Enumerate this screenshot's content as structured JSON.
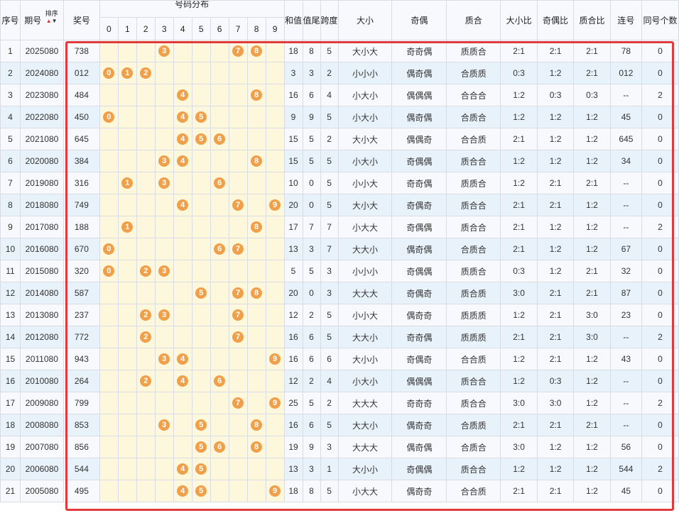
{
  "header": {
    "col_index": "序号",
    "col_period": "期号",
    "sort_label": "排序",
    "col_prize": "奖号",
    "col_distribution": "号码分布",
    "digits": [
      "0",
      "1",
      "2",
      "3",
      "4",
      "5",
      "6",
      "7",
      "8",
      "9"
    ],
    "col_sum": "和值",
    "col_tail": "值尾",
    "col_span": "跨度",
    "col_size": "大小",
    "col_parity": "奇偶",
    "col_prime": "质合",
    "col_size_ratio": "大小比",
    "col_parity_ratio": "奇偶比",
    "col_prime_ratio": "质合比",
    "col_consecutive": "连号",
    "col_same": "同号个数"
  },
  "rows": [
    {
      "idx": "1",
      "period": "2025080",
      "prize": "738",
      "sum": "18",
      "tail": "8",
      "span": "5",
      "size": "大小大",
      "parity": "奇奇偶",
      "prime": "质质合",
      "sr": "2:1",
      "pr": "2:1",
      "qr": "2:1",
      "cons": "78",
      "same": "0"
    },
    {
      "idx": "2",
      "period": "2024080",
      "prize": "012",
      "sum": "3",
      "tail": "3",
      "span": "2",
      "size": "小小小",
      "parity": "偶奇偶",
      "prime": "合质质",
      "sr": "0:3",
      "pr": "1:2",
      "qr": "2:1",
      "cons": "012",
      "same": "0"
    },
    {
      "idx": "3",
      "period": "2023080",
      "prize": "484",
      "sum": "16",
      "tail": "6",
      "span": "4",
      "size": "小大小",
      "parity": "偶偶偶",
      "prime": "合合合",
      "sr": "1:2",
      "pr": "0:3",
      "qr": "0:3",
      "cons": "--",
      "same": "2"
    },
    {
      "idx": "4",
      "period": "2022080",
      "prize": "450",
      "sum": "9",
      "tail": "9",
      "span": "5",
      "size": "小大小",
      "parity": "偶奇偶",
      "prime": "合质合",
      "sr": "1:2",
      "pr": "1:2",
      "qr": "1:2",
      "cons": "45",
      "same": "0"
    },
    {
      "idx": "5",
      "period": "2021080",
      "prize": "645",
      "sum": "15",
      "tail": "5",
      "span": "2",
      "size": "大小大",
      "parity": "偶偶奇",
      "prime": "合合质",
      "sr": "2:1",
      "pr": "1:2",
      "qr": "1:2",
      "cons": "645",
      "same": "0"
    },
    {
      "idx": "6",
      "period": "2020080",
      "prize": "384",
      "sum": "15",
      "tail": "5",
      "span": "5",
      "size": "小大小",
      "parity": "奇偶偶",
      "prime": "质合合",
      "sr": "1:2",
      "pr": "1:2",
      "qr": "1:2",
      "cons": "34",
      "same": "0"
    },
    {
      "idx": "7",
      "period": "2019080",
      "prize": "316",
      "sum": "10",
      "tail": "0",
      "span": "5",
      "size": "小小大",
      "parity": "奇奇偶",
      "prime": "质质合",
      "sr": "1:2",
      "pr": "2:1",
      "qr": "2:1",
      "cons": "--",
      "same": "0"
    },
    {
      "idx": "8",
      "period": "2018080",
      "prize": "749",
      "sum": "20",
      "tail": "0",
      "span": "5",
      "size": "大小大",
      "parity": "奇偶奇",
      "prime": "质合合",
      "sr": "2:1",
      "pr": "2:1",
      "qr": "1:2",
      "cons": "--",
      "same": "0"
    },
    {
      "idx": "9",
      "period": "2017080",
      "prize": "188",
      "sum": "17",
      "tail": "7",
      "span": "7",
      "size": "小大大",
      "parity": "奇偶偶",
      "prime": "质合合",
      "sr": "2:1",
      "pr": "1:2",
      "qr": "1:2",
      "cons": "--",
      "same": "2"
    },
    {
      "idx": "10",
      "period": "2016080",
      "prize": "670",
      "sum": "13",
      "tail": "3",
      "span": "7",
      "size": "大大小",
      "parity": "偶奇偶",
      "prime": "合质合",
      "sr": "2:1",
      "pr": "1:2",
      "qr": "1:2",
      "cons": "67",
      "same": "0"
    },
    {
      "idx": "11",
      "period": "2015080",
      "prize": "320",
      "sum": "5",
      "tail": "5",
      "span": "3",
      "size": "小小小",
      "parity": "奇偶偶",
      "prime": "质质合",
      "sr": "0:3",
      "pr": "1:2",
      "qr": "2:1",
      "cons": "32",
      "same": "0"
    },
    {
      "idx": "12",
      "period": "2014080",
      "prize": "587",
      "sum": "20",
      "tail": "0",
      "span": "3",
      "size": "大大大",
      "parity": "奇偶奇",
      "prime": "质合质",
      "sr": "3:0",
      "pr": "2:1",
      "qr": "2:1",
      "cons": "87",
      "same": "0"
    },
    {
      "idx": "13",
      "period": "2013080",
      "prize": "237",
      "sum": "12",
      "tail": "2",
      "span": "5",
      "size": "小小大",
      "parity": "偶奇奇",
      "prime": "质质质",
      "sr": "1:2",
      "pr": "2:1",
      "qr": "3:0",
      "cons": "23",
      "same": "0"
    },
    {
      "idx": "14",
      "period": "2012080",
      "prize": "772",
      "sum": "16",
      "tail": "6",
      "span": "5",
      "size": "大大小",
      "parity": "奇奇偶",
      "prime": "质质质",
      "sr": "2:1",
      "pr": "2:1",
      "qr": "3:0",
      "cons": "--",
      "same": "2"
    },
    {
      "idx": "15",
      "period": "2011080",
      "prize": "943",
      "sum": "16",
      "tail": "6",
      "span": "6",
      "size": "大小小",
      "parity": "奇偶奇",
      "prime": "合合质",
      "sr": "1:2",
      "pr": "2:1",
      "qr": "1:2",
      "cons": "43",
      "same": "0"
    },
    {
      "idx": "16",
      "period": "2010080",
      "prize": "264",
      "sum": "12",
      "tail": "2",
      "span": "4",
      "size": "小大小",
      "parity": "偶偶偶",
      "prime": "质合合",
      "sr": "1:2",
      "pr": "0:3",
      "qr": "1:2",
      "cons": "--",
      "same": "0"
    },
    {
      "idx": "17",
      "period": "2009080",
      "prize": "799",
      "sum": "25",
      "tail": "5",
      "span": "2",
      "size": "大大大",
      "parity": "奇奇奇",
      "prime": "质合合",
      "sr": "3:0",
      "pr": "3:0",
      "qr": "1:2",
      "cons": "--",
      "same": "2"
    },
    {
      "idx": "18",
      "period": "2008080",
      "prize": "853",
      "sum": "16",
      "tail": "6",
      "span": "5",
      "size": "大大小",
      "parity": "偶奇奇",
      "prime": "合质质",
      "sr": "2:1",
      "pr": "2:1",
      "qr": "2:1",
      "cons": "--",
      "same": "0"
    },
    {
      "idx": "19",
      "period": "2007080",
      "prize": "856",
      "sum": "19",
      "tail": "9",
      "span": "3",
      "size": "大大大",
      "parity": "偶奇偶",
      "prime": "合质合",
      "sr": "3:0",
      "pr": "1:2",
      "qr": "1:2",
      "cons": "56",
      "same": "0"
    },
    {
      "idx": "20",
      "period": "2006080",
      "prize": "544",
      "sum": "13",
      "tail": "3",
      "span": "1",
      "size": "大小小",
      "parity": "奇偶偶",
      "prime": "质合合",
      "sr": "1:2",
      "pr": "1:2",
      "qr": "1:2",
      "cons": "544",
      "same": "2"
    },
    {
      "idx": "21",
      "period": "2005080",
      "prize": "495",
      "sum": "18",
      "tail": "8",
      "span": "5",
      "size": "小大大",
      "parity": "偶奇奇",
      "prime": "合合质",
      "sr": "2:1",
      "pr": "2:1",
      "qr": "1:2",
      "cons": "45",
      "same": "0"
    }
  ],
  "colors": {
    "ball": "#f0a04b",
    "highlight_frame": "#e0393e",
    "row_alt": "#e8f2fb",
    "digit_bg": "#fdf8dc"
  }
}
